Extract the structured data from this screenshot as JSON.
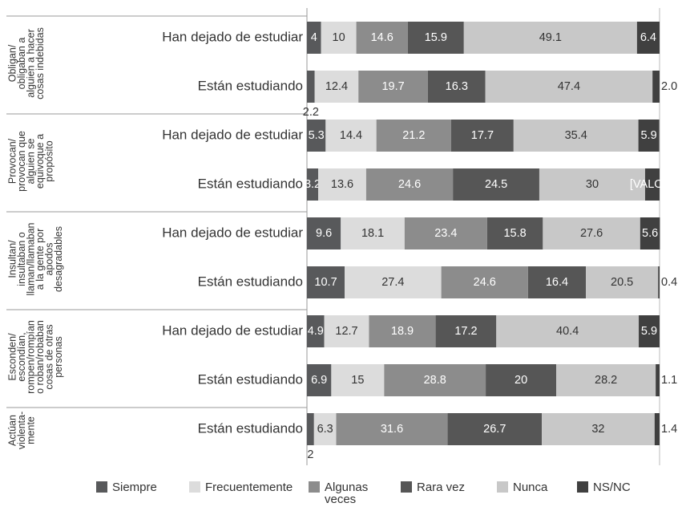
{
  "chart_data": {
    "type": "bar",
    "orientation": "horizontal",
    "stacked": true,
    "groups": [
      {
        "label": [
          "Obligan/",
          "obligaban a",
          "alguien a hacer",
          "cosas indebidas"
        ],
        "categories": [
          "Han dejado de estudiar",
          "Están estudiando"
        ]
      },
      {
        "label": [
          "Provocan/",
          "provocan que",
          "alguien se",
          "equivoque a",
          "propósito"
        ],
        "categories": [
          "Han dejado de estudiar",
          "Están estudiando"
        ]
      },
      {
        "label": [
          "Insultan/",
          "insultaban o",
          "llaman/llamaban",
          "a la gente por",
          "apodos",
          "desagradables"
        ],
        "categories": [
          "Han dejado de estudiar",
          "Están estudiando"
        ]
      },
      {
        "label": [
          "Esconden/",
          "escondían,",
          "rompen/rompían",
          "o roban/robaban",
          "cosas de otras",
          "personas"
        ],
        "categories": [
          "Han dejado de estudiar",
          "Están estudiando"
        ]
      },
      {
        "label": [
          "Actúan",
          "violenta-",
          "mente"
        ],
        "categories": [
          "Están estudiando"
        ]
      }
    ],
    "series": [
      {
        "name": "Siempre",
        "color": "#58595b",
        "values": [
          4.0,
          2.2,
          5.3,
          3.2,
          9.6,
          10.7,
          4.9,
          6.9,
          2.0
        ]
      },
      {
        "name": "Frecuentemente",
        "color": "#dcdcdc",
        "values": [
          10.0,
          12.4,
          14.4,
          13.6,
          18.1,
          27.4,
          12.7,
          15.0,
          6.3
        ]
      },
      {
        "name": "Algunas veces",
        "color": "#8c8c8c",
        "values": [
          14.6,
          19.7,
          21.2,
          24.6,
          23.4,
          24.6,
          18.9,
          28.8,
          31.6
        ]
      },
      {
        "name": "Rara vez",
        "color": "#565656",
        "values": [
          15.9,
          16.3,
          17.7,
          24.5,
          15.8,
          16.4,
          17.2,
          20.0,
          26.7
        ]
      },
      {
        "name": "Nunca",
        "color": "#c8c8c8",
        "values": [
          49.1,
          47.4,
          35.4,
          30.0,
          27.6,
          20.5,
          40.4,
          28.2,
          32.0
        ]
      },
      {
        "name": "NS/NC",
        "color": "#404040",
        "values": [
          6.4,
          2.0,
          5.9,
          4.1,
          5.6,
          0.4,
          5.9,
          1.1,
          1.4
        ],
        "value_labels": [
          "6.4",
          "2.0",
          "5.9",
          "[VALOR]",
          "5.6",
          "0.4",
          "5.9",
          "1.1",
          "1.4"
        ]
      }
    ],
    "xlim": [
      0,
      100
    ]
  }
}
